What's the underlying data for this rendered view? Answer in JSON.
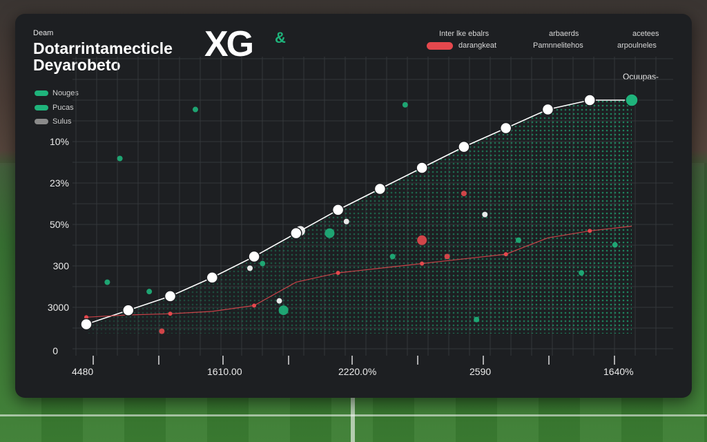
{
  "header": {
    "small_label": "Deam",
    "title_line1": "Dotarrintamecticle",
    "title_line2": "Deyarobeto",
    "brand": "XG",
    "brand_mark": "&",
    "stat_a_line1": "Inter lke ebalrs",
    "stat_a_line2": "darangkeat",
    "stat_b_line1": "arbaerds",
    "stat_b_line2": "Pamnnelitehos",
    "stat_c_line1": "acetees",
    "stat_c_line2": "arpoulneles",
    "series_note": "Ocuupas-"
  },
  "colors": {
    "panel": "#1d1f22",
    "accent_green": "#1fb37b",
    "accent_red": "#e5484d",
    "marker_white": "#ffffff",
    "grid": "#3a3d41"
  },
  "legend": [
    {
      "label": "Nouges",
      "color": "#1fb37b"
    },
    {
      "label": "Pucas",
      "color": "#1fb37b"
    },
    {
      "label": "Sulus",
      "color": "#8a8a8a"
    }
  ],
  "chart_data": {
    "type": "line",
    "title": "Dotarrintamecticle Deyarobeto",
    "y_tick_labels": [
      "10%",
      "23%",
      "50%",
      "300",
      "3000",
      "0"
    ],
    "x_tick_labels": [
      "4480",
      "1610.00",
      "2220.0%",
      "2590",
      "1640%"
    ],
    "x": [
      0,
      1,
      2,
      3,
      4,
      5,
      6,
      7,
      8,
      9,
      10,
      11,
      12,
      13
    ],
    "ylim": [
      0,
      100
    ],
    "grid": true,
    "legend_position": "top-left",
    "series": [
      {
        "values": [
          4,
          10,
          16,
          24,
          33,
          43,
          53,
          62,
          71,
          80,
          88,
          96,
          100,
          100
        ],
        "color": "#ffffff",
        "fill_below": true
      },
      {
        "values": [
          7,
          8,
          8.5,
          9.5,
          12,
          22,
          26,
          28,
          30,
          32,
          34,
          41,
          44,
          46
        ],
        "color": "#e5484d"
      }
    ],
    "scatter_points": [
      {
        "x": 2.6,
        "y": 96,
        "color": "#1fb37b"
      },
      {
        "x": 7.6,
        "y": 98,
        "color": "#1fb37b"
      },
      {
        "x": 0.8,
        "y": 75,
        "color": "#1fb37b"
      },
      {
        "x": 5.8,
        "y": 43,
        "color": "#1fb37b"
      },
      {
        "x": 10.3,
        "y": 40,
        "color": "#1fb37b"
      },
      {
        "x": 12.6,
        "y": 38,
        "color": "#1fb37b"
      },
      {
        "x": 0.5,
        "y": 22,
        "color": "#1fb37b"
      },
      {
        "x": 1.5,
        "y": 18,
        "color": "#1fb37b"
      },
      {
        "x": 4.7,
        "y": 10,
        "color": "#1fb37b"
      },
      {
        "x": 7.3,
        "y": 33,
        "color": "#1fb37b"
      },
      {
        "x": 11.8,
        "y": 26,
        "color": "#1fb37b"
      },
      {
        "x": 9.3,
        "y": 6,
        "color": "#1fb37b"
      },
      {
        "x": 4.2,
        "y": 30,
        "color": "#1fb37b"
      },
      {
        "x": 5.1,
        "y": 44,
        "color": "#ffffff"
      },
      {
        "x": 6.2,
        "y": 48,
        "color": "#ffffff"
      },
      {
        "x": 9.5,
        "y": 51,
        "color": "#ffffff"
      },
      {
        "x": 4.6,
        "y": 14,
        "color": "#ffffff"
      },
      {
        "x": 3.9,
        "y": 28,
        "color": "#ffffff"
      },
      {
        "x": 8.0,
        "y": 40,
        "color": "#e5484d"
      },
      {
        "x": 8.6,
        "y": 33,
        "color": "#e5484d"
      },
      {
        "x": 9.0,
        "y": 60,
        "color": "#e5484d"
      },
      {
        "x": 1.8,
        "y": 1,
        "color": "#e5484d"
      }
    ]
  }
}
